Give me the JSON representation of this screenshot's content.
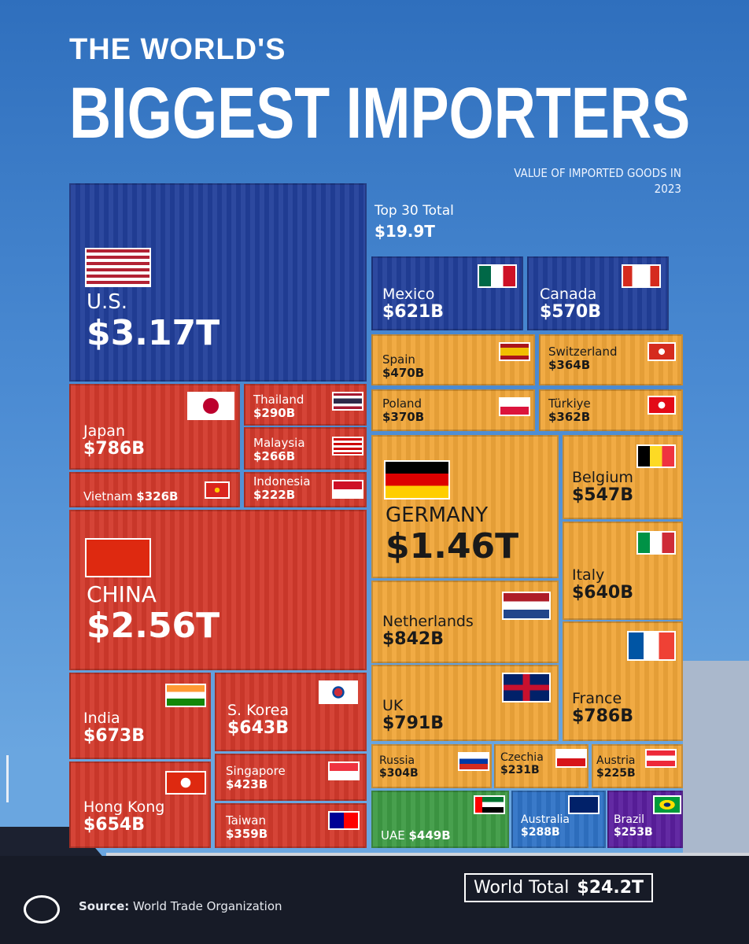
{
  "header": {
    "title_line1": "THE WORLD'S",
    "title_line2": "BIGGEST IMPORTERS",
    "subtitle": "VALUE OF IMPORTED GOODS IN 2023"
  },
  "top30": {
    "label": "Top 30 Total",
    "value": "$19.9T"
  },
  "footer": {
    "world_total_label": "World Total",
    "world_total_value": "$24.2T",
    "source_label": "Source:",
    "source_text": "World Trade Organization"
  },
  "colors": {
    "americas": "#223f9a",
    "asia": "#d33a2c",
    "europe": "#f0a73a",
    "uae": "#3e9b44",
    "australia": "#2f73c6",
    "brazil": "#5b1f9e"
  },
  "chart_data": {
    "type": "treemap",
    "title": "THE WORLD'S BIGGEST IMPORTERS",
    "subtitle": "VALUE OF IMPORTED GOODS IN 2023",
    "unit": "USD",
    "items": [
      {
        "name": "U.S.",
        "label": "$3.17T",
        "value_billions": 3170,
        "group": "americas",
        "flag": "us"
      },
      {
        "name": "Mexico",
        "label": "$621B",
        "value_billions": 621,
        "group": "americas",
        "flag": "mx"
      },
      {
        "name": "Canada",
        "label": "$570B",
        "value_billions": 570,
        "group": "americas",
        "flag": "ca"
      },
      {
        "name": "Japan",
        "label": "$786B",
        "value_billions": 786,
        "group": "asia",
        "flag": "jp"
      },
      {
        "name": "Thailand",
        "label": "$290B",
        "value_billions": 290,
        "group": "asia",
        "flag": "th"
      },
      {
        "name": "Malaysia",
        "label": "$266B",
        "value_billions": 266,
        "group": "asia",
        "flag": "my"
      },
      {
        "name": "Vietnam",
        "label": "$326B",
        "value_billions": 326,
        "group": "asia",
        "flag": "vn"
      },
      {
        "name": "Indonesia",
        "label": "$222B",
        "value_billions": 222,
        "group": "asia",
        "flag": "id"
      },
      {
        "name": "CHINA",
        "label": "$2.56T",
        "value_billions": 2560,
        "group": "asia",
        "flag": "cn"
      },
      {
        "name": "India",
        "label": "$673B",
        "value_billions": 673,
        "group": "asia",
        "flag": "in"
      },
      {
        "name": "S. Korea",
        "label": "$643B",
        "value_billions": 643,
        "group": "asia",
        "flag": "kr"
      },
      {
        "name": "Singapore",
        "label": "$423B",
        "value_billions": 423,
        "group": "asia",
        "flag": "sg"
      },
      {
        "name": "Hong Kong",
        "label": "$654B",
        "value_billions": 654,
        "group": "asia",
        "flag": "hk"
      },
      {
        "name": "Taiwan",
        "label": "$359B",
        "value_billions": 359,
        "group": "asia",
        "flag": "tw"
      },
      {
        "name": "Spain",
        "label": "$470B",
        "value_billions": 470,
        "group": "europe",
        "flag": "es"
      },
      {
        "name": "Switzerland",
        "label": "$364B",
        "value_billions": 364,
        "group": "europe",
        "flag": "ch"
      },
      {
        "name": "Poland",
        "label": "$370B",
        "value_billions": 370,
        "group": "europe",
        "flag": "pl"
      },
      {
        "name": "Türkiye",
        "label": "$362B",
        "value_billions": 362,
        "group": "europe",
        "flag": "tr"
      },
      {
        "name": "GERMANY",
        "label": "$1.46T",
        "value_billions": 1460,
        "group": "europe",
        "flag": "de"
      },
      {
        "name": "Belgium",
        "label": "$547B",
        "value_billions": 547,
        "group": "europe",
        "flag": "be"
      },
      {
        "name": "Italy",
        "label": "$640B",
        "value_billions": 640,
        "group": "europe",
        "flag": "it"
      },
      {
        "name": "Netherlands",
        "label": "$842B",
        "value_billions": 842,
        "group": "europe",
        "flag": "nl"
      },
      {
        "name": "France",
        "label": "$786B",
        "value_billions": 786,
        "group": "europe",
        "flag": "fr"
      },
      {
        "name": "UK",
        "label": "$791B",
        "value_billions": 791,
        "group": "europe",
        "flag": "gb"
      },
      {
        "name": "Russia",
        "label": "$304B",
        "value_billions": 304,
        "group": "europe",
        "flag": "ru"
      },
      {
        "name": "Czechia",
        "label": "$231B",
        "value_billions": 231,
        "group": "europe",
        "flag": "cz"
      },
      {
        "name": "Austria",
        "label": "$225B",
        "value_billions": 225,
        "group": "europe",
        "flag": "at"
      },
      {
        "name": "UAE",
        "label": "$449B",
        "value_billions": 449,
        "group": "uae",
        "flag": "ae"
      },
      {
        "name": "Australia",
        "label": "$288B",
        "value_billions": 288,
        "group": "australia",
        "flag": "au"
      },
      {
        "name": "Brazil",
        "label": "$253B",
        "value_billions": 253,
        "group": "brazil",
        "flag": "br"
      }
    ]
  }
}
